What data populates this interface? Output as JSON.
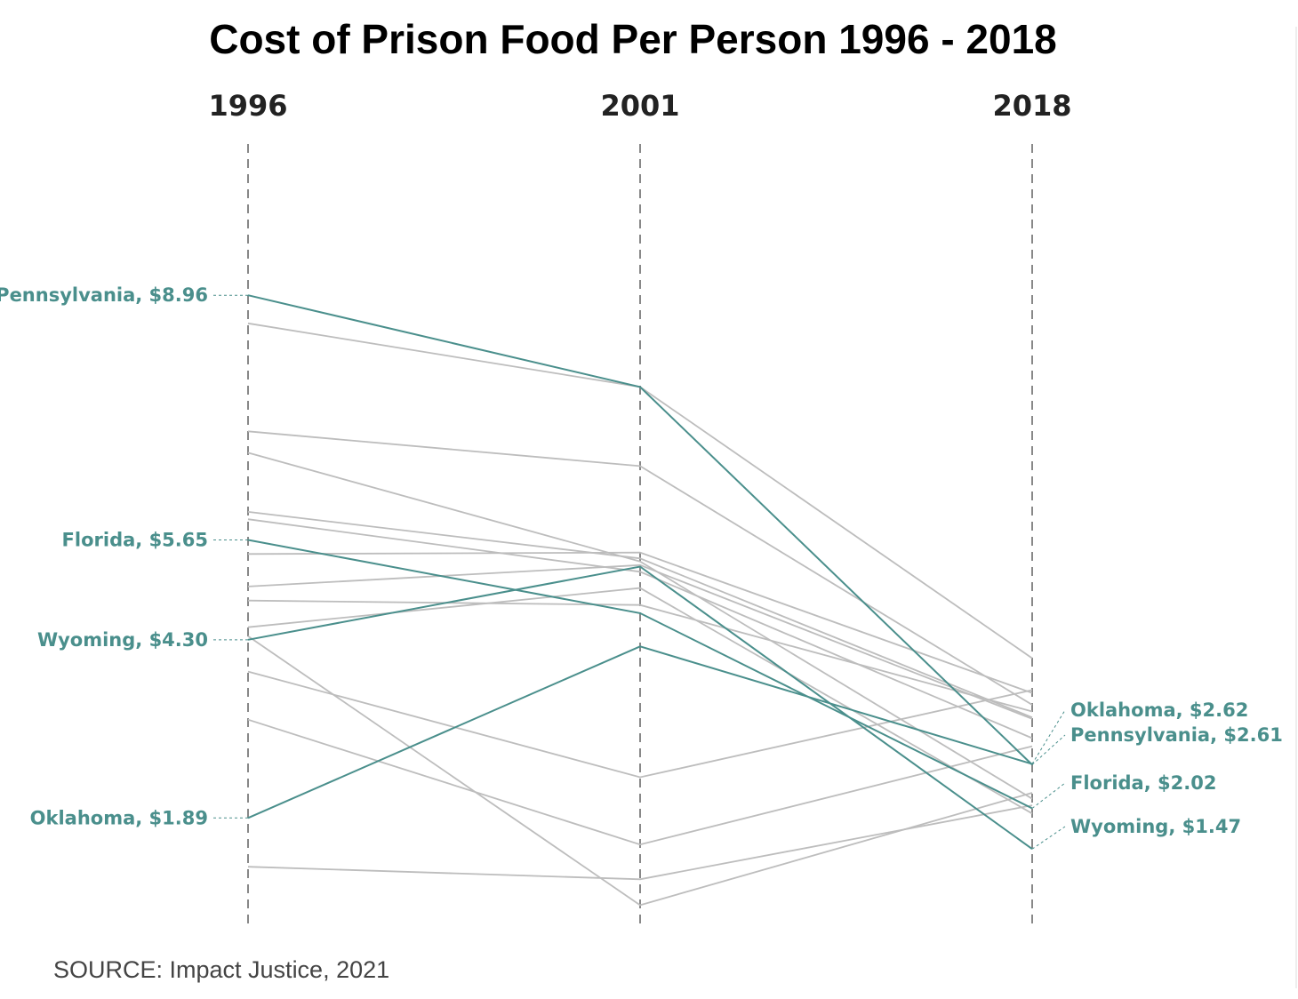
{
  "colors": {
    "highlight": "#4a8f8c",
    "other": "#bdbdbd",
    "axis": "#888888",
    "right_border": "#dddddd"
  },
  "chart_data": {
    "type": "slope",
    "title": "Cost of Prison Food Per Person 1996 - 2018",
    "source": "SOURCE: Impact Justice, 2021",
    "years": [
      "1996",
      "2001",
      "2018"
    ],
    "series": [
      {
        "name": "Pennsylvania",
        "highlighted": true,
        "values": [
          8.96,
          7.72,
          2.61
        ],
        "labels": [
          "Pennsylvania, $8.96",
          "",
          "Pennsylvania, $2.61"
        ]
      },
      {
        "name": "Florida",
        "highlighted": true,
        "values": [
          5.65,
          4.66,
          2.02
        ],
        "labels": [
          "Florida, $5.65",
          "",
          "Florida, $2.02"
        ]
      },
      {
        "name": "Wyoming",
        "highlighted": true,
        "values": [
          4.3,
          5.29,
          1.47
        ],
        "labels": [
          "Wyoming, $4.30",
          "",
          "Wyoming, $1.47"
        ]
      },
      {
        "name": "Oklahoma",
        "highlighted": true,
        "values": [
          1.89,
          4.21,
          2.62
        ],
        "labels": [
          "Oklahoma, $1.89",
          "",
          "Oklahoma, $2.62"
        ]
      },
      {
        "values": [
          8.58,
          7.72,
          4.05
        ]
      },
      {
        "values": [
          7.12,
          6.65,
          3.42
        ]
      },
      {
        "values": [
          6.83,
          5.36,
          2.15
        ]
      },
      {
        "values": [
          6.03,
          5.4,
          3.25
        ]
      },
      {
        "values": [
          5.93,
          5.22,
          2.97
        ]
      },
      {
        "values": [
          5.46,
          5.48,
          3.58
        ]
      },
      {
        "values": [
          5.02,
          5.31,
          3.23
        ]
      },
      {
        "values": [
          4.83,
          4.77,
          3.33
        ]
      },
      {
        "values": [
          4.47,
          5.0,
          1.95
        ]
      },
      {
        "values": [
          3.87,
          2.44,
          3.62
        ]
      },
      {
        "values": [
          3.22,
          1.53,
          2.86
        ]
      },
      {
        "values": [
          1.23,
          1.06,
          2.06
        ]
      },
      {
        "values": [
          4.35,
          0.71,
          2.23
        ]
      }
    ]
  }
}
